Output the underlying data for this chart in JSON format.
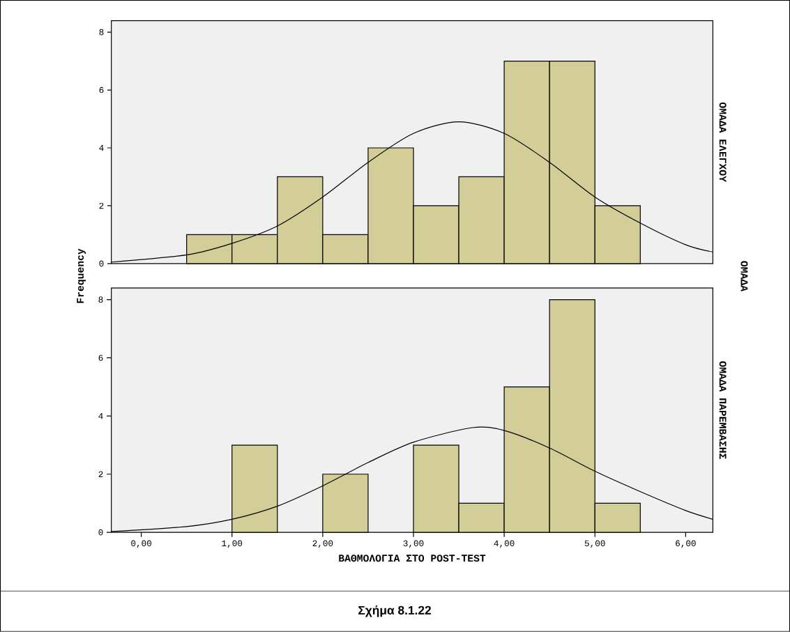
{
  "chart_data": [
    {
      "type": "histogram",
      "y2label": "ΟΜΑΔΑ ΕΛΕΓΧΟΥ",
      "ylabel": "Frequency",
      "annotations": [
        "ΟΜΑΔΑ"
      ],
      "bins": [
        0.5,
        1.0,
        1.5,
        2.0,
        2.5,
        3.0,
        3.5,
        4.0,
        4.5,
        5.0,
        5.5
      ],
      "series": [
        {
          "type": "histogram",
          "color": "#d3ce97",
          "values": [
            1,
            1,
            3,
            1,
            4,
            2,
            3,
            7,
            7,
            2
          ]
        },
        {
          "type": "line",
          "color": "#000000",
          "x": [
            -0.33,
            0.5,
            1.0,
            1.5,
            2.0,
            2.5,
            3.0,
            3.5,
            4.0,
            4.5,
            5.0,
            5.5,
            6.0,
            6.3
          ],
          "values": [
            0.05,
            0.3,
            0.7,
            1.3,
            2.3,
            3.5,
            4.5,
            4.9,
            4.5,
            3.5,
            2.3,
            1.4,
            0.65,
            0.4
          ]
        }
      ],
      "xlim": [
        -0.33,
        6.3
      ],
      "ylim": [
        0,
        8.4
      ],
      "yticks": [
        0,
        2,
        4,
        6,
        8
      ]
    },
    {
      "type": "histogram",
      "y2label": "ΟΜΑΔΑ ΠΑΡΕΜΒΑΣΗΣ",
      "xlabel": "ΒΑΘΜΟΛΟΓΙΑ ΣΤΟ POST-TEST",
      "annotations": [
        "Σχήμα 8.1.22"
      ],
      "bins": [
        0.5,
        1.0,
        1.5,
        2.0,
        2.5,
        3.0,
        3.5,
        4.0,
        4.5,
        5.0,
        5.5
      ],
      "series": [
        {
          "type": "histogram",
          "color": "#d3ce97",
          "values": [
            0,
            3,
            0,
            2,
            0,
            3,
            1,
            5,
            8,
            1
          ]
        },
        {
          "type": "line",
          "color": "#000000",
          "x": [
            -0.33,
            0.5,
            1.0,
            1.5,
            2.0,
            2.5,
            3.0,
            3.65,
            4.0,
            4.5,
            5.0,
            5.5,
            6.0,
            6.3
          ],
          "values": [
            0.03,
            0.2,
            0.45,
            0.9,
            1.6,
            2.4,
            3.1,
            3.6,
            3.5,
            2.9,
            2.1,
            1.4,
            0.75,
            0.45
          ]
        }
      ],
      "xlim": [
        -0.33,
        6.3
      ],
      "ylim": [
        0,
        8.4
      ],
      "xticks": [
        {
          "value": 0,
          "label": "0,00"
        },
        {
          "value": 1,
          "label": "1,00"
        },
        {
          "value": 2,
          "label": "2,00"
        },
        {
          "value": 3,
          "label": "3,00"
        },
        {
          "value": 4,
          "label": "4,00"
        },
        {
          "value": 5,
          "label": "5,00"
        },
        {
          "value": 6,
          "label": "6,00"
        }
      ],
      "yticks": [
        0,
        2,
        4,
        6,
        8
      ]
    }
  ]
}
